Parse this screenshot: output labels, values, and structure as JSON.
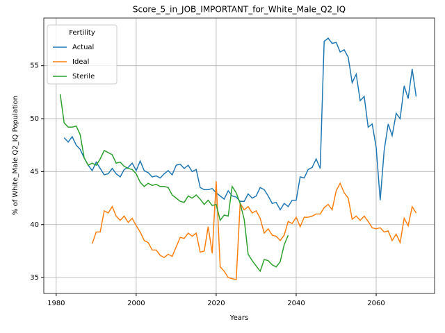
{
  "chart_data": {
    "type": "line",
    "title": "Score_5_in_JOB_IMPORTANT_for_White_Male_Q2_IQ",
    "xlabel": "Years",
    "ylabel": "% of White_Male Q2_IQ Population",
    "legend_title": "Fertility",
    "legend": "upper left",
    "grid": true,
    "xlim": [
      1976.9,
      2074.6
    ],
    "xticks": [
      1980,
      2000,
      2020,
      2040,
      2060
    ],
    "ylim": [
      33.5,
      59.5
    ],
    "yticks": [
      35,
      40,
      45,
      50,
      55
    ],
    "x": [
      1981,
      1982,
      1983,
      1984,
      1985,
      1986,
      1987,
      1988,
      1989,
      1990,
      1991,
      1992,
      1993,
      1994,
      1995,
      1996,
      1997,
      1998,
      1999,
      2000,
      2001,
      2002,
      2003,
      2004,
      2005,
      2006,
      2007,
      2008,
      2009,
      2010,
      2011,
      2012,
      2013,
      2014,
      2015,
      2016,
      2017,
      2018,
      2019,
      2020,
      2021,
      2022,
      2023,
      2024,
      2025,
      2026,
      2027,
      2028,
      2029,
      2030,
      2031,
      2032,
      2033,
      2034,
      2035,
      2036,
      2037,
      2038,
      2039,
      2040,
      2041,
      2042,
      2043,
      2044,
      2045,
      2046,
      2047,
      2048,
      2049,
      2050,
      2051,
      2052,
      2053,
      2054,
      2055,
      2056,
      2057,
      2058,
      2059,
      2060,
      2061,
      2062,
      2063,
      2064,
      2065,
      2066,
      2067,
      2068,
      2069,
      2070
    ],
    "series": [
      {
        "name": "Actual",
        "color": "#1f77b4",
        "values": [
          null,
          48.2,
          47.8,
          48.3,
          47.5,
          47.1,
          46.3,
          45.6,
          45.1,
          45.9,
          45.3,
          44.7,
          44.8,
          45.3,
          44.8,
          44.5,
          45.2,
          45.4,
          45.8,
          45.1,
          46.0,
          45.1,
          44.9,
          44.5,
          44.6,
          44.4,
          44.8,
          45.1,
          44.7,
          45.6,
          45.7,
          45.3,
          45.6,
          45.0,
          45.2,
          43.5,
          43.3,
          43.3,
          43.4,
          43.0,
          42.7,
          42.4,
          43.2,
          42.7,
          42.6,
          42.2,
          42.2,
          42.9,
          42.5,
          42.7,
          43.5,
          43.3,
          42.7,
          42.0,
          42.1,
          41.4,
          42.0,
          41.7,
          42.3,
          42.3,
          44.5,
          44.4,
          45.2,
          45.4,
          46.2,
          45.3,
          57.3,
          57.6,
          57.1,
          57.2,
          56.3,
          56.5,
          55.8,
          53.4,
          54.2,
          51.7,
          52.1,
          49.2,
          49.5,
          47.3,
          42.3,
          47.0,
          49.5,
          48.4,
          50.5,
          50.0,
          53.1,
          51.9,
          54.7,
          52.1
        ]
      },
      {
        "name": "Ideal",
        "color": "#ff7f0e",
        "values": [
          null,
          null,
          null,
          null,
          null,
          null,
          null,
          null,
          38.2,
          39.3,
          39.3,
          41.3,
          41.1,
          41.7,
          40.8,
          40.4,
          40.8,
          40.2,
          40.6,
          39.9,
          39.3,
          38.5,
          38.3,
          37.6,
          37.6,
          37.1,
          36.9,
          37.2,
          37.0,
          37.9,
          38.8,
          38.7,
          39.2,
          38.9,
          39.2,
          37.4,
          37.5,
          39.8,
          37.3,
          44.1,
          36.0,
          35.6,
          35.0,
          34.9,
          34.8,
          42.0,
          41.4,
          41.7,
          41.1,
          41.3,
          40.6,
          39.2,
          39.6,
          39.0,
          38.9,
          38.5,
          39.0,
          40.3,
          40.1,
          40.7,
          39.8,
          40.7,
          40.7,
          40.8,
          41.0,
          41.0,
          41.6,
          41.9,
          41.4,
          43.2,
          43.9,
          43.0,
          42.5,
          40.5,
          40.8,
          40.4,
          40.8,
          40.3,
          39.7,
          39.6,
          39.7,
          39.3,
          39.4,
          38.5,
          39.1,
          38.3,
          40.6,
          39.9,
          41.7,
          41.1
        ]
      },
      {
        "name": "Sterile",
        "color": "#2ca02c",
        "values": [
          52.3,
          49.6,
          49.2,
          49.2,
          49.3,
          48.5,
          46.3,
          45.6,
          45.8,
          45.6,
          46.2,
          47.0,
          46.8,
          46.6,
          45.8,
          45.9,
          45.5,
          45.3,
          45.2,
          44.8,
          44.0,
          43.6,
          43.9,
          43.7,
          43.8,
          43.6,
          43.6,
          43.5,
          42.8,
          42.5,
          42.2,
          42.1,
          42.7,
          42.5,
          42.8,
          42.4,
          41.9,
          42.3,
          41.8,
          41.9,
          40.4,
          40.9,
          40.8,
          43.6,
          43.0,
          42.0,
          40.5,
          37.2,
          36.6,
          36.1,
          35.6,
          36.7,
          36.6,
          36.2,
          36.0,
          36.5,
          38.1,
          39.0,
          null,
          null,
          null,
          null,
          null,
          null,
          null,
          null,
          null,
          null,
          null,
          null,
          null,
          null,
          null,
          null,
          null,
          null,
          null,
          null,
          null,
          null,
          null,
          null,
          null,
          null,
          null,
          null,
          null,
          null,
          null,
          null
        ]
      }
    ]
  }
}
